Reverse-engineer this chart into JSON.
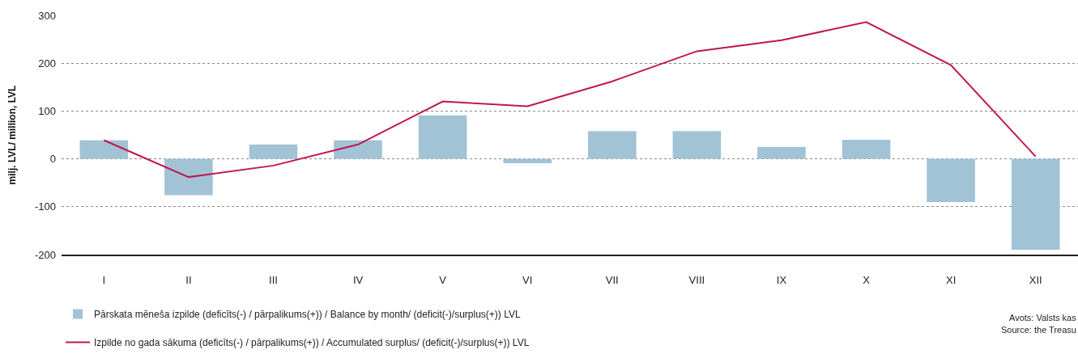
{
  "chart_data": {
    "type": "bar",
    "ylabel": "milj. LVL/ million, LVL",
    "categories": [
      "I",
      "II",
      "III",
      "IV",
      "V",
      "VI",
      "VII",
      "VIII",
      "IX",
      "X",
      "XI",
      "XII"
    ],
    "series": [
      {
        "name": "Pārskata mēneša izpilde (deficīts(-) / pārpalikums(+)) / Balance by month/ (deficit(-)/surplus(+)) LVL",
        "color": "#a2c3d6",
        "values": [
          39,
          -76,
          30,
          39,
          91,
          -9,
          58,
          58,
          25,
          40,
          -90,
          -190
        ]
      },
      {
        "name": "Izpilde no gada sākuma (deficīts(-) / pārpalikums(+)) / Accumulated surplus/ (deficit(-)/surplus(+)) LVL",
        "type": "line",
        "color": "#c0174b",
        "values": [
          39,
          -38,
          -14,
          30,
          120,
          110,
          162,
          225,
          248,
          286,
          196,
          5
        ]
      }
    ],
    "ylim": [
      -200,
      300
    ],
    "yticks": [
      -200,
      -100,
      0,
      100,
      200,
      300
    ],
    "grid": "y",
    "legend": "bottom left",
    "marker": "none",
    "line_style": "solid",
    "annotations": [
      "Avots: Valsts kas",
      "Source: the Treasu"
    ]
  }
}
